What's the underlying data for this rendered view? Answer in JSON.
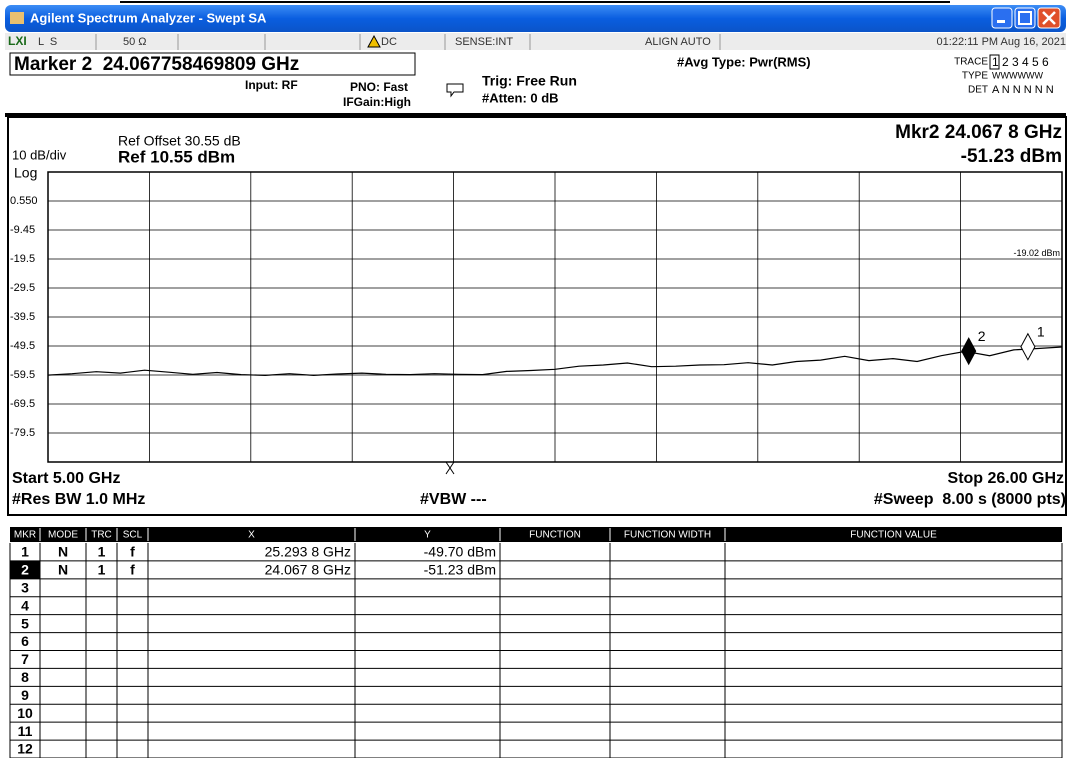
{
  "window": {
    "title": "Agilent Spectrum Analyzer - Swept SA"
  },
  "status_bar": {
    "mode": "L  S",
    "impedance": "50 Ω",
    "coupling": "DC",
    "sense": "SENSE:INT",
    "align": "ALIGN AUTO",
    "datetime": "01:22:11 PM Aug 16, 2021"
  },
  "settings": {
    "marker": "Marker 2  24.067758469809 GHz",
    "input": "Input: RF",
    "pno": "PNO: Fast",
    "ifgain": "IFGain:High",
    "trig": "Trig: Free Run",
    "atten": "#Atten: 0 dB",
    "avg_type": "#Avg Type: Pwr(RMS)",
    "trace_label": "TRACE",
    "trace_numbers": "1 2 3 4 5 6",
    "type_label": "TYPE",
    "type_values": "WWWWWW",
    "det_label": "DET",
    "det_values": "A N N N N N"
  },
  "chart_data": {
    "type": "line",
    "ref_offset": "Ref Offset 30.55 dB",
    "scale": "10 dB/div",
    "ref_level": "Ref 10.55 dBm",
    "scale_type": "Log",
    "marker_readout_freq": "Mkr2 24.067 8 GHz",
    "marker_readout_amp": "-51.23 dBm",
    "display_line": {
      "value": -19.02,
      "label": "-19.02 dBm"
    },
    "start": "Start 5.00 GHz",
    "stop": "Stop 26.00 GHz",
    "res_bw": "#Res BW 1.0 MHz",
    "vbw": "#VBW ---",
    "sweep": "#Sweep  8.00 s (8000 pts)",
    "xlim": [
      5,
      26
    ],
    "ylim": [
      -89.45,
      10.55
    ],
    "yticks": [
      {
        "value": 0.55,
        "label": "0.550"
      },
      -9.45,
      {
        "value": -19.45,
        "label": "-19.5"
      },
      {
        "value": -29.45,
        "label": "-29.5"
      },
      {
        "value": -39.45,
        "label": "-39.5"
      },
      {
        "value": -49.45,
        "label": "-49.5"
      },
      {
        "value": -59.45,
        "label": "-59.5"
      },
      {
        "value": -69.45,
        "label": "-69.5"
      },
      {
        "value": -79.45,
        "label": "-79.5"
      }
    ],
    "grid": true,
    "color": "#000000",
    "x": [
      5.0,
      5.5,
      6.0,
      6.5,
      7.0,
      7.5,
      8.0,
      8.5,
      9.0,
      9.5,
      10.0,
      10.5,
      11.0,
      11.5,
      12.0,
      12.5,
      13.0,
      13.5,
      14.0,
      14.5,
      15.0,
      15.5,
      16.0,
      16.5,
      17.0,
      17.5,
      18.0,
      18.5,
      19.0,
      19.5,
      20.0,
      20.5,
      21.0,
      21.5,
      22.0,
      22.5,
      23.0,
      23.5,
      24.0,
      24.5,
      25.0,
      25.5,
      26.0
    ],
    "values": [
      -59.5,
      -59.0,
      -58.3,
      -58.8,
      -57.8,
      -58.5,
      -59.2,
      -58.6,
      -59.3,
      -59.6,
      -59.0,
      -59.6,
      -59.1,
      -58.8,
      -59.2,
      -59.3,
      -59.0,
      -59.2,
      -59.3,
      -58.2,
      -57.9,
      -57.5,
      -56.4,
      -56.0,
      -55.3,
      -56.6,
      -56.4,
      -56.0,
      -55.9,
      -55.2,
      -56.0,
      -54.8,
      -54.3,
      -53.0,
      -54.5,
      -53.8,
      -54.8,
      -52.8,
      -51.3,
      -52.8,
      -50.8,
      -50.3,
      -49.8
    ],
    "markers": [
      {
        "label": "2",
        "x": 24.0678,
        "y": -51.23,
        "active": true
      },
      {
        "label": "1",
        "x": 25.2938,
        "y": -49.7,
        "active": false
      }
    ]
  },
  "marker_table": {
    "headers": [
      "MKR",
      "MODE",
      "TRC",
      "SCL",
      "X",
      "Y",
      "FUNCTION",
      "FUNCTION WIDTH",
      "FUNCTION VALUE"
    ],
    "rows": [
      [
        "1",
        "N",
        "1",
        "f",
        "25.293 8 GHz",
        "-49.70 dBm"
      ],
      [
        "2",
        "N",
        "1",
        "f",
        "24.067 8 GHz",
        "-51.23 dBm"
      ],
      [
        "3"
      ],
      [
        "4"
      ],
      [
        "5"
      ],
      [
        "6"
      ],
      [
        "7"
      ],
      [
        "8"
      ],
      [
        "9"
      ],
      [
        "10"
      ],
      [
        "11"
      ],
      [
        "12"
      ]
    ],
    "active_row": 1
  }
}
